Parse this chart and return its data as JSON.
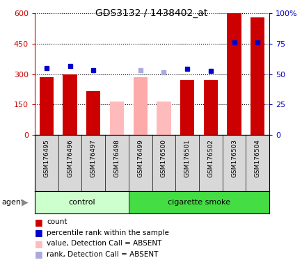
{
  "title": "GDS3132 / 1438402_at",
  "samples": [
    "GSM176495",
    "GSM176496",
    "GSM176497",
    "GSM176498",
    "GSM176499",
    "GSM176500",
    "GSM176501",
    "GSM176502",
    "GSM176503",
    "GSM176504"
  ],
  "bar_values": [
    285,
    300,
    215,
    null,
    285,
    null,
    270,
    270,
    600,
    580
  ],
  "bar_colors": [
    "#cc0000",
    "#cc0000",
    "#cc0000",
    null,
    "#ffaaaa",
    null,
    "#cc0000",
    "#cc0000",
    "#cc0000",
    "#cc0000"
  ],
  "absent_bar_values": [
    null,
    null,
    null,
    165,
    null,
    165,
    null,
    null,
    null,
    null
  ],
  "rank_dots": [
    null,
    null,
    null,
    null,
    320,
    310,
    null,
    null,
    null,
    null
  ],
  "percentile_dots": [
    330,
    340,
    320,
    null,
    null,
    null,
    325,
    315,
    455,
    455
  ],
  "ylim_left": [
    0,
    600
  ],
  "ylim_right": [
    0,
    100
  ],
  "yticks_left": [
    0,
    150,
    300,
    450,
    600
  ],
  "ytick_labels_left": [
    "0",
    "150",
    "300",
    "450",
    "600"
  ],
  "yticks_right": [
    0,
    25,
    50,
    75,
    100
  ],
  "ytick_labels_right": [
    "0",
    "25",
    "50",
    "75",
    "100%"
  ],
  "group_labels": [
    "control",
    "cigarette smoke"
  ],
  "group_ranges": [
    [
      0,
      4
    ],
    [
      4,
      10
    ]
  ],
  "group_colors_fill": [
    "#ccffcc",
    "#44dd44"
  ],
  "agent_label": "agent",
  "legend_colors": [
    "#cc0000",
    "#0000cc",
    "#ffbbbb",
    "#aaaadd"
  ],
  "legend_labels": [
    "count",
    "percentile rank within the sample",
    "value, Detection Call = ABSENT",
    "rank, Detection Call = ABSENT"
  ],
  "bar_width": 0.6,
  "dot_size": 5
}
